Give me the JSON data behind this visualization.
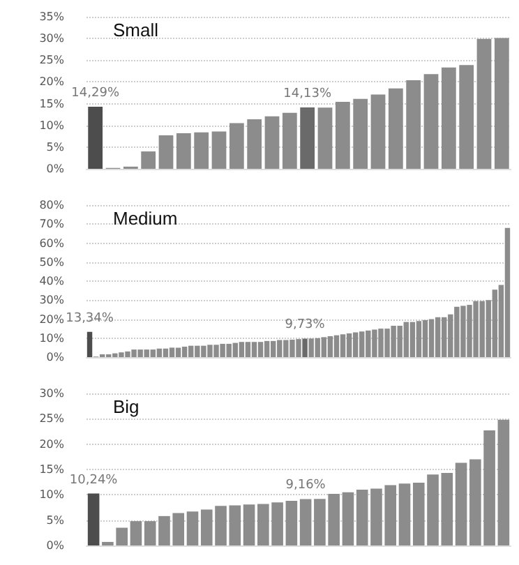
{
  "chart_data": [
    {
      "type": "bar",
      "title": "Small",
      "categories": [
        null,
        null,
        null,
        null,
        null,
        null,
        null,
        null,
        null,
        null,
        null,
        null,
        null,
        null,
        null,
        null,
        null,
        null,
        null,
        null,
        null,
        null,
        null,
        null
      ],
      "values": [
        14.29,
        0.2,
        0.5,
        4,
        7.7,
        8.2,
        8.4,
        8.6,
        10.5,
        11.4,
        12.1,
        12.9,
        14.13,
        14.1,
        15.4,
        16.1,
        17.1,
        18.5,
        20.4,
        21.8,
        23.3,
        23.9,
        29.9,
        30.1
      ],
      "value_labels": [
        "14,29%",
        null,
        null,
        null,
        null,
        null,
        null,
        null,
        null,
        null,
        null,
        null,
        "14,13%",
        null,
        null,
        null,
        null,
        null,
        null,
        null,
        null,
        null,
        null,
        null
      ],
      "colors": [
        "#4d4d4d",
        "#8c8c8c",
        "#8c8c8c",
        "#8c8c8c",
        "#8c8c8c",
        "#8c8c8c",
        "#8c8c8c",
        "#8c8c8c",
        "#8c8c8c",
        "#8c8c8c",
        "#8c8c8c",
        "#8c8c8c",
        "#6a6a6a",
        "#8c8c8c",
        "#8c8c8c",
        "#8c8c8c",
        "#8c8c8c",
        "#8c8c8c",
        "#8c8c8c",
        "#8c8c8c",
        "#8c8c8c",
        "#8c8c8c",
        "#8c8c8c",
        "#8c8c8c"
      ],
      "ylim": [
        0,
        35
      ],
      "yticks": [
        {
          "value": 0,
          "label": "0%"
        },
        {
          "value": 5,
          "label": "5%"
        },
        {
          "value": 10,
          "label": "10%"
        },
        {
          "value": 15,
          "label": "15%"
        },
        {
          "value": 20,
          "label": "20%"
        },
        {
          "value": 25,
          "label": "25%"
        },
        {
          "value": 30,
          "label": "30%"
        },
        {
          "value": 35,
          "label": "35%"
        }
      ],
      "grid": "y",
      "tick_labels": "y"
    },
    {
      "type": "bar",
      "title": "Medium",
      "categories": [
        null,
        null,
        null,
        null,
        null,
        null,
        null,
        null,
        null,
        null,
        null,
        null,
        null,
        null,
        null,
        null,
        null,
        null,
        null,
        null,
        null,
        null,
        null,
        null,
        null,
        null,
        null,
        null,
        null,
        null,
        null,
        null,
        null,
        null,
        null,
        null,
        null,
        null,
        null,
        null,
        null,
        null,
        null,
        null,
        null,
        null,
        null,
        null,
        null,
        null,
        null,
        null,
        null,
        null,
        null,
        null,
        null,
        null,
        null,
        null,
        null,
        null,
        null,
        null,
        null,
        null,
        null
      ],
      "values": [
        13.34,
        0.3,
        1.5,
        1.5,
        2,
        2.5,
        3,
        4,
        4,
        4,
        4,
        4.5,
        4.5,
        5,
        5,
        5.5,
        6,
        6,
        6,
        6.5,
        6.5,
        7,
        7,
        7.5,
        8,
        8,
        8,
        8,
        8.5,
        8.5,
        9,
        9,
        9.2,
        9.5,
        9.73,
        9.8,
        10,
        10.5,
        11,
        11.5,
        12,
        12.5,
        13,
        13.5,
        14,
        14.5,
        15,
        15,
        16.5,
        16.5,
        18.5,
        18.5,
        19,
        19.5,
        20,
        21,
        21,
        22.5,
        26.5,
        27,
        27.5,
        29.5,
        29.5,
        30,
        35.5,
        38,
        68
      ],
      "value_labels": [
        "13,34%",
        null,
        null,
        null,
        null,
        null,
        null,
        null,
        null,
        null,
        null,
        null,
        null,
        null,
        null,
        null,
        null,
        null,
        null,
        null,
        null,
        null,
        null,
        null,
        null,
        null,
        null,
        null,
        null,
        null,
        null,
        null,
        null,
        null,
        "9,73%",
        null,
        null,
        null,
        null,
        null,
        null,
        null,
        null,
        null,
        null,
        null,
        null,
        null,
        null,
        null,
        null,
        null,
        null,
        null,
        null,
        null,
        null,
        null,
        null,
        null,
        null,
        null,
        null,
        null,
        null,
        null,
        null
      ],
      "colors": [
        "#4d4d4d",
        "#8c8c8c",
        "#8c8c8c",
        "#8c8c8c",
        "#8c8c8c",
        "#8c8c8c",
        "#8c8c8c",
        "#8c8c8c",
        "#8c8c8c",
        "#8c8c8c",
        "#8c8c8c",
        "#8c8c8c",
        "#8c8c8c",
        "#8c8c8c",
        "#8c8c8c",
        "#8c8c8c",
        "#8c8c8c",
        "#8c8c8c",
        "#8c8c8c",
        "#8c8c8c",
        "#8c8c8c",
        "#8c8c8c",
        "#8c8c8c",
        "#8c8c8c",
        "#8c8c8c",
        "#8c8c8c",
        "#8c8c8c",
        "#8c8c8c",
        "#8c8c8c",
        "#8c8c8c",
        "#8c8c8c",
        "#8c8c8c",
        "#8c8c8c",
        "#8c8c8c",
        "#6a6a6a",
        "#8c8c8c",
        "#8c8c8c",
        "#8c8c8c",
        "#8c8c8c",
        "#8c8c8c",
        "#8c8c8c",
        "#8c8c8c",
        "#8c8c8c",
        "#8c8c8c",
        "#8c8c8c",
        "#8c8c8c",
        "#8c8c8c",
        "#8c8c8c",
        "#8c8c8c",
        "#8c8c8c",
        "#8c8c8c",
        "#8c8c8c",
        "#8c8c8c",
        "#8c8c8c",
        "#8c8c8c",
        "#8c8c8c",
        "#8c8c8c",
        "#8c8c8c",
        "#8c8c8c",
        "#8c8c8c",
        "#8c8c8c",
        "#8c8c8c",
        "#8c8c8c",
        "#8c8c8c",
        "#8c8c8c",
        "#8c8c8c",
        "#8c8c8c"
      ],
      "ylim": [
        0,
        80
      ],
      "yticks": [
        {
          "value": 0,
          "label": "0%"
        },
        {
          "value": 10,
          "label": "10%"
        },
        {
          "value": 20,
          "label": "20%"
        },
        {
          "value": 30,
          "label": "30%"
        },
        {
          "value": 40,
          "label": "40%"
        },
        {
          "value": 50,
          "label": "50%"
        },
        {
          "value": 60,
          "label": "60%"
        },
        {
          "value": 70,
          "label": "70%"
        },
        {
          "value": 80,
          "label": "80%"
        }
      ],
      "grid": "y",
      "tick_labels": "y"
    },
    {
      "type": "bar",
      "title": "Big",
      "categories": [
        null,
        null,
        null,
        null,
        null,
        null,
        null,
        null,
        null,
        null,
        null,
        null,
        null,
        null,
        null,
        null,
        null,
        null,
        null,
        null,
        null,
        null,
        null,
        null,
        null,
        null,
        null,
        null,
        null,
        null
      ],
      "values": [
        10.24,
        0.7,
        3.5,
        4.8,
        4.8,
        5.8,
        6.4,
        6.7,
        7.1,
        7.8,
        7.9,
        8.1,
        8.2,
        8.5,
        8.8,
        9.16,
        9.2,
        10.2,
        10.5,
        11,
        11.2,
        11.9,
        12.2,
        12.4,
        14,
        14.3,
        16.3,
        17,
        22.7,
        24.8
      ],
      "value_labels": [
        "10,24%",
        null,
        null,
        null,
        null,
        null,
        null,
        null,
        null,
        null,
        null,
        null,
        null,
        null,
        null,
        "9,16%",
        null,
        null,
        null,
        null,
        null,
        null,
        null,
        null,
        null,
        null,
        null,
        null,
        null,
        null
      ],
      "colors": [
        "#4d4d4d",
        "#8c8c8c",
        "#8c8c8c",
        "#8c8c8c",
        "#8c8c8c",
        "#8c8c8c",
        "#8c8c8c",
        "#8c8c8c",
        "#8c8c8c",
        "#8c8c8c",
        "#8c8c8c",
        "#8c8c8c",
        "#8c8c8c",
        "#8c8c8c",
        "#8c8c8c",
        "#8c8c8c",
        "#8c8c8c",
        "#8c8c8c",
        "#8c8c8c",
        "#8c8c8c",
        "#8c8c8c",
        "#8c8c8c",
        "#8c8c8c",
        "#8c8c8c",
        "#8c8c8c",
        "#8c8c8c",
        "#8c8c8c",
        "#8c8c8c",
        "#8c8c8c",
        "#8c8c8c"
      ],
      "ylim": [
        0,
        30
      ],
      "yticks": [
        {
          "value": 0,
          "label": "0%"
        },
        {
          "value": 5,
          "label": "5%"
        },
        {
          "value": 10,
          "label": "10%"
        },
        {
          "value": 15,
          "label": "15%"
        },
        {
          "value": 20,
          "label": "20%"
        },
        {
          "value": 25,
          "label": "25%"
        },
        {
          "value": 30,
          "label": "30%"
        }
      ],
      "grid": "y",
      "tick_labels": "y"
    }
  ]
}
